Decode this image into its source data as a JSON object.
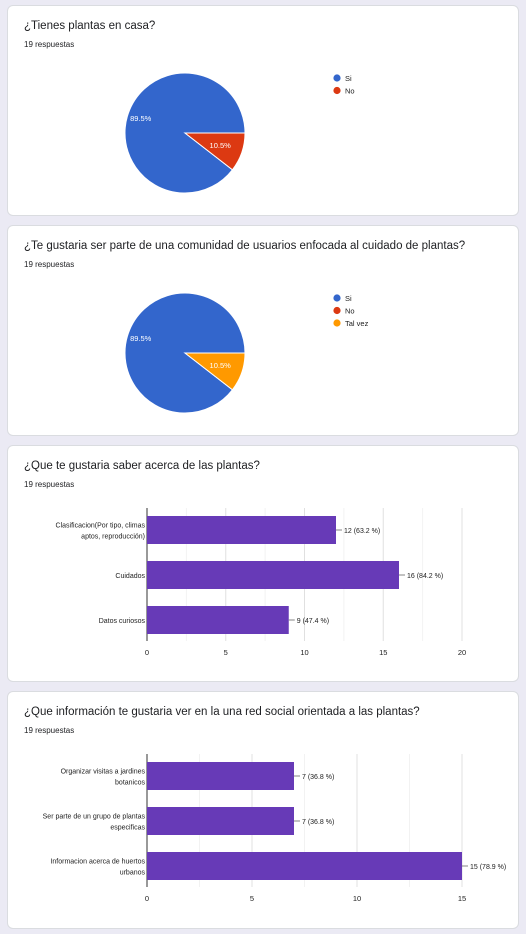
{
  "colors": {
    "blue": "#3366cc",
    "red": "#dc3912",
    "orange": "#ff9900",
    "purple": "#673ab7",
    "grid": "#e6e6e6",
    "axis": "#333333"
  },
  "questions": [
    {
      "title": "¿Tienes plantas en casa?",
      "responses": "19 respuestas"
    },
    {
      "title": "¿Te gustaria ser parte de una comunidad de usuarios enfocada al cuidado de plantas?",
      "responses": "19 respuestas"
    },
    {
      "title": "¿Que te gustaria saber acerca de las plantas?",
      "responses": "19 respuestas"
    },
    {
      "title": "¿Que información te gustaria ver en la una red social orientada a las plantas?",
      "responses": "19 respuestas"
    }
  ],
  "chart_data": [
    {
      "type": "pie",
      "legend_position": "right",
      "slices": [
        {
          "label": "Si",
          "value": 89.5,
          "display": "89.5%",
          "color": "#3366cc"
        },
        {
          "label": "No",
          "value": 10.5,
          "display": "10.5%",
          "color": "#dc3912"
        }
      ]
    },
    {
      "type": "pie",
      "legend_position": "right",
      "slices": [
        {
          "label": "Si",
          "value": 89.5,
          "display": "89.5%",
          "color": "#3366cc"
        },
        {
          "label": "No",
          "value": 0,
          "display": "",
          "color": "#dc3912"
        },
        {
          "label": "Tal vez",
          "value": 10.5,
          "display": "10.5%",
          "color": "#ff9900"
        }
      ]
    },
    {
      "type": "bar",
      "orientation": "horizontal",
      "categories": [
        [
          "Clasificacion(Por tipo, climas",
          "aptos, reproducción)"
        ],
        [
          "Cuidados"
        ],
        [
          "Datos curiosos"
        ]
      ],
      "values": [
        12,
        16,
        9
      ],
      "labels": [
        "12 (63.2 %)",
        "16 (84.2 %)",
        "9 (47.4 %)"
      ],
      "ticks": [
        "0",
        "5",
        "10",
        "15",
        "20"
      ],
      "xlim": [
        0,
        20
      ],
      "grid": true
    },
    {
      "type": "bar",
      "orientation": "horizontal",
      "categories": [
        [
          "Organizar visitas a jardines",
          "botanicos"
        ],
        [
          "Ser parte de un grupo de plantas",
          "especificas"
        ],
        [
          "Informacion acerca de huertos",
          "urbanos"
        ]
      ],
      "values": [
        7,
        7,
        15
      ],
      "labels": [
        "7 (36.8 %)",
        "7 (36.8 %)",
        "15 (78.9 %)"
      ],
      "ticks": [
        "0",
        "5",
        "10",
        "15"
      ],
      "xlim": [
        0,
        15
      ],
      "grid": true
    }
  ]
}
